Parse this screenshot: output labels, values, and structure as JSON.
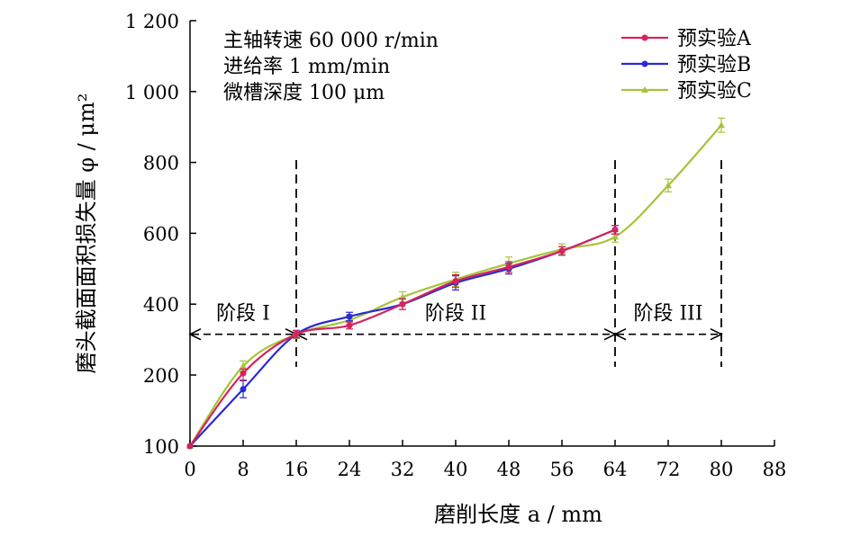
{
  "chart_data": {
    "type": "line",
    "xlabel": "磨削长度 a / mm",
    "ylabel": "磨头截面面积损失量 φ / μm²",
    "xlim": [
      0,
      88
    ],
    "ylim": [
      100,
      1200
    ],
    "xticks": [
      "0",
      "8",
      "16",
      "24",
      "32",
      "40",
      "48",
      "56",
      "64",
      "72",
      "80",
      "88"
    ],
    "yticks": [
      "100",
      "200",
      "400",
      "600",
      "800",
      "1 000",
      "1 200"
    ],
    "annotations": [
      "主轴转速 60 000 r/min",
      "进给率 1 mm/min",
      "微槽深度 100 μm"
    ],
    "stages": [
      {
        "label": "阶段 I",
        "x_start": 0,
        "x_end": 16
      },
      {
        "label": "阶段 II",
        "x_start": 16,
        "x_end": 64
      },
      {
        "label": "阶段 III",
        "x_start": 64,
        "x_end": 80
      }
    ],
    "legend_position": "top-right",
    "series": [
      {
        "name": "预实验A",
        "color": "#d6245a",
        "marker": "circle",
        "x": [
          0,
          8,
          16,
          24,
          32,
          40,
          48,
          56,
          64
        ],
        "y": [
          100,
          205,
          315,
          340,
          400,
          465,
          505,
          550,
          610
        ],
        "err": [
          0,
          12,
          10,
          10,
          15,
          18,
          15,
          12,
          12
        ]
      },
      {
        "name": "预实验B",
        "color": "#2a2ad6",
        "marker": "circle",
        "x": [
          0,
          8,
          16,
          24,
          32,
          40,
          48,
          56,
          64
        ],
        "y": [
          100,
          180,
          315,
          365,
          400,
          460,
          500,
          550,
          610
        ],
        "err": [
          0,
          12,
          10,
          12,
          15,
          20,
          15,
          12,
          12
        ]
      },
      {
        "name": "预实验C",
        "color": "#a6c43a",
        "marker": "triangle",
        "x": [
          0,
          8,
          16,
          24,
          32,
          40,
          48,
          56,
          64,
          72,
          80
        ],
        "y": [
          100,
          225,
          315,
          355,
          420,
          470,
          515,
          555,
          590,
          735,
          905
        ],
        "err": [
          0,
          15,
          12,
          15,
          15,
          20,
          18,
          15,
          15,
          18,
          20
        ]
      }
    ]
  }
}
